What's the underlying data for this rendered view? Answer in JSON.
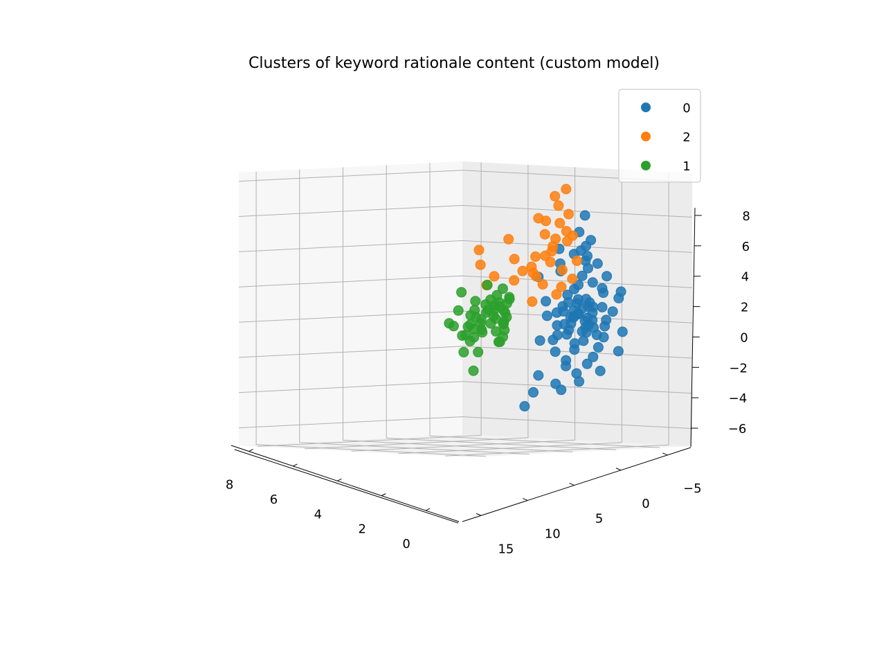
{
  "chart_data": {
    "type": "scatter",
    "projection": "3d",
    "title": "Clusters of keyword rationale content (custom model)",
    "xlabel": "",
    "ylabel": "",
    "zlabel": "",
    "x_axis": {
      "ticks": [
        0,
        2,
        4,
        6,
        8
      ],
      "tick_labels": [
        "0",
        "2",
        "4",
        "6",
        "8"
      ],
      "range": [
        -1.5,
        8.8
      ]
    },
    "y_axis": {
      "ticks": [
        15,
        10,
        5,
        0,
        -5
      ],
      "tick_labels": [
        "15",
        "10",
        "5",
        "0",
        "−5"
      ],
      "range": [
        -7.5,
        17
      ]
    },
    "z_axis": {
      "ticks": [
        -6,
        -4,
        -2,
        0,
        2,
        4,
        6,
        8
      ],
      "tick_labels": [
        "−6",
        "−4",
        "−2",
        "0",
        "2",
        "4",
        "6",
        "8"
      ],
      "range": [
        -7,
        8.5
      ]
    },
    "grid": true,
    "legend": {
      "placement": "top-right",
      "entries": [
        "0",
        "2",
        "1"
      ]
    },
    "series": [
      {
        "name": "0",
        "color": "#1f77b4",
        "points": [
          [
            0.3,
            -0.5,
            0.2
          ],
          [
            0.1,
            0.5,
            0.7
          ],
          [
            0.6,
            -1.0,
            -0.3
          ],
          [
            -0.2,
            0.8,
            1.2
          ],
          [
            0.4,
            -0.3,
            -1.1
          ],
          [
            0.0,
            1.2,
            0.4
          ],
          [
            0.7,
            -1.5,
            0.9
          ],
          [
            0.2,
            0.3,
            -0.6
          ],
          [
            -0.3,
            -0.8,
            1.6
          ],
          [
            0.5,
            1.5,
            -0.2
          ],
          [
            0.8,
            -0.2,
            0.3
          ],
          [
            -0.1,
            -1.3,
            -0.9
          ],
          [
            0.3,
            0.9,
            1.8
          ],
          [
            0.1,
            -0.6,
            2.2
          ],
          [
            0.6,
            0.2,
            -1.6
          ],
          [
            0.0,
            -1.8,
            0.1
          ],
          [
            0.4,
            1.9,
            0.8
          ],
          [
            -0.2,
            0.0,
            -0.4
          ],
          [
            0.9,
            -0.9,
            1.3
          ],
          [
            0.2,
            1.1,
            -1.3
          ],
          [
            0.5,
            -0.4,
            2.6
          ],
          [
            -0.4,
            0.6,
            0.0
          ],
          [
            0.3,
            -1.1,
            -2.0
          ],
          [
            0.7,
            0.7,
            1.5
          ],
          [
            0.1,
            -0.1,
            3.0
          ],
          [
            0.2,
            2.3,
            0.5
          ],
          [
            0.6,
            -2.2,
            -0.7
          ],
          [
            -0.1,
            1.4,
            2.0
          ],
          [
            0.4,
            -0.7,
            -2.4
          ],
          [
            0.0,
            0.4,
            3.4
          ],
          [
            0.8,
            0.1,
            -0.1
          ],
          [
            0.3,
            1.7,
            -0.8
          ],
          [
            0.1,
            -1.6,
            1.9
          ],
          [
            0.5,
            0.5,
            0.6
          ],
          [
            -0.2,
            -0.5,
            -1.5
          ],
          [
            0.2,
            0.0,
            0.0
          ],
          [
            0.4,
            0.2,
            0.4
          ],
          [
            0.1,
            -0.2,
            -0.2
          ],
          [
            0.3,
            0.6,
            1.0
          ],
          [
            0.0,
            -0.4,
            0.8
          ],
          [
            0.6,
            0.8,
            -0.5
          ],
          [
            0.2,
            -0.8,
            0.5
          ],
          [
            -0.3,
            1.0,
            -0.7
          ],
          [
            0.5,
            -1.2,
            1.1
          ],
          [
            0.3,
            1.3,
            0.2
          ],
          [
            0.1,
            2.0,
            1.0
          ],
          [
            0.4,
            2.5,
            -0.3
          ],
          [
            0.2,
            3.0,
            0.4
          ],
          [
            0.0,
            -2.5,
            0.6
          ],
          [
            0.5,
            -2.8,
            -0.2
          ],
          [
            0.3,
            0.2,
            4.0
          ],
          [
            0.1,
            -0.4,
            4.6
          ],
          [
            0.4,
            0.7,
            3.8
          ],
          [
            -0.1,
            1.3,
            5.0
          ],
          [
            0.2,
            0.0,
            6.0
          ],
          [
            0.5,
            -0.8,
            4.3
          ],
          [
            1.0,
            -3.2,
            3.4
          ],
          [
            0.3,
            1.8,
            -2.6
          ],
          [
            0.2,
            0.9,
            -3.0
          ],
          [
            0.6,
            -0.3,
            -3.4
          ],
          [
            0.1,
            -1.4,
            -2.8
          ],
          [
            0.4,
            2.7,
            -1.8
          ],
          [
            0.0,
            3.4,
            -0.9
          ],
          [
            0.7,
            -3.0,
            0.9
          ],
          [
            0.3,
            3.8,
            0.2
          ],
          [
            0.2,
            -3.6,
            1.4
          ],
          [
            0.9,
            0.4,
            -2.2
          ],
          [
            0.5,
            1.9,
            2.8
          ],
          [
            0.1,
            -2.1,
            2.6
          ],
          [
            0.3,
            2.4,
            3.2
          ],
          [
            1.6,
            -0.5,
            4.2
          ],
          [
            2.0,
            0.8,
            2.6
          ],
          [
            1.2,
            -1.1,
            0.3
          ],
          [
            1.5,
            0.4,
            -1.0
          ],
          [
            -0.6,
            1.6,
            3.6
          ],
          [
            0.2,
            5.5,
            -4.2
          ],
          [
            0.4,
            4.5,
            -3.2
          ],
          [
            0.3,
            6.2,
            -5.0
          ],
          [
            0.0,
            3.0,
            -4.0
          ],
          [
            0.6,
            2.2,
            -3.6
          ],
          [
            0.2,
            -4.0,
            -0.5
          ],
          [
            0.4,
            -4.3,
            1.8
          ],
          [
            0.3,
            -3.8,
            -1.6
          ],
          [
            0.1,
            4.4,
            1.0
          ],
          [
            0.5,
            4.1,
            -1.2
          ]
        ]
      },
      {
        "name": "2",
        "color": "#ff7f0e",
        "points": [
          [
            1.5,
            -1.0,
            7.6
          ],
          [
            1.8,
            -0.5,
            7.2
          ],
          [
            1.2,
            0.5,
            6.6
          ],
          [
            1.6,
            -1.5,
            6.2
          ],
          [
            2.0,
            0.0,
            5.8
          ],
          [
            1.4,
            -0.8,
            5.2
          ],
          [
            1.7,
            0.8,
            5.0
          ],
          [
            1.1,
            -0.2,
            4.6
          ],
          [
            2.2,
            -1.2,
            4.4
          ],
          [
            1.3,
            1.0,
            4.0
          ],
          [
            1.9,
            0.3,
            3.8
          ],
          [
            1.0,
            -1.0,
            3.5
          ],
          [
            2.4,
            0.6,
            3.2
          ],
          [
            1.5,
            -0.6,
            3.0
          ],
          [
            1.8,
            1.5,
            2.6
          ],
          [
            4.0,
            2.5,
            4.2
          ],
          [
            3.5,
            3.5,
            3.3
          ],
          [
            3.0,
            4.0,
            2.1
          ],
          [
            2.6,
            2.0,
            2.4
          ],
          [
            2.8,
            -0.5,
            2.9
          ],
          [
            1.2,
            0.2,
            2.0
          ],
          [
            1.6,
            -0.2,
            1.6
          ],
          [
            2.2,
            1.0,
            1.2
          ],
          [
            1.4,
            0.9,
            3.4
          ],
          [
            1.9,
            -0.8,
            4.8
          ],
          [
            3.2,
            1.2,
            4.8
          ],
          [
            2.6,
            -0.6,
            6.0
          ],
          [
            1.1,
            0.6,
            5.6
          ],
          [
            2.9,
            0.4,
            3.0
          ],
          [
            1.7,
            1.8,
            3.7
          ],
          [
            0.9,
            -0.3,
            4.9
          ],
          [
            2.1,
            0.1,
            2.2
          ],
          [
            3.6,
            1.8,
            2.7
          ],
          [
            1.3,
            -1.2,
            2.5
          ],
          [
            2.5,
            2.2,
            3.6
          ]
        ]
      },
      {
        "name": "1",
        "color": "#2ca02c",
        "points": [
          [
            8.5,
            -7.0,
            0.5
          ],
          [
            7.0,
            -3.0,
            -0.3
          ],
          [
            7.2,
            -2.2,
            0.2
          ],
          [
            6.5,
            -1.5,
            -0.4
          ],
          [
            6.8,
            -0.8,
            0.3
          ],
          [
            6.0,
            -0.5,
            -1.4
          ],
          [
            5.5,
            0.2,
            0.0
          ],
          [
            5.0,
            0.5,
            0.5
          ],
          [
            5.6,
            1.0,
            0.9
          ],
          [
            4.5,
            1.0,
            -0.4
          ],
          [
            4.8,
            1.6,
            -0.9
          ],
          [
            4.2,
            1.8,
            0.3
          ],
          [
            3.8,
            2.0,
            0.8
          ],
          [
            3.5,
            2.4,
            0.0
          ],
          [
            3.9,
            1.5,
            1.4
          ],
          [
            3.2,
            2.8,
            0.4
          ],
          [
            3.0,
            3.0,
            -0.5
          ],
          [
            2.8,
            3.5,
            0.2
          ],
          [
            2.5,
            3.8,
            1.1
          ],
          [
            2.2,
            4.0,
            0.0
          ],
          [
            2.0,
            4.5,
            0.6
          ],
          [
            1.8,
            5.0,
            -0.2
          ],
          [
            1.5,
            5.5,
            0.4
          ],
          [
            1.2,
            6.0,
            0.9
          ],
          [
            1.0,
            6.5,
            0.1
          ],
          [
            6.2,
            -2.0,
            -2.4
          ],
          [
            5.2,
            1.6,
            1.9
          ],
          [
            4.0,
            2.6,
            -1.6
          ],
          [
            3.3,
            2.2,
            1.6
          ],
          [
            2.6,
            3.2,
            1.9
          ],
          [
            5.9,
            -1.0,
            0.7
          ],
          [
            4.6,
            0.4,
            1.2
          ],
          [
            3.6,
            1.2,
            -1.0
          ],
          [
            2.9,
            2.5,
            -0.8
          ],
          [
            2.3,
            3.2,
            1.4
          ],
          [
            1.6,
            4.8,
            1.2
          ],
          [
            1.4,
            5.8,
            -0.6
          ],
          [
            2.1,
            4.8,
            -1.2
          ],
          [
            4.4,
            1.4,
            0.1
          ],
          [
            3.1,
            2.9,
            1.0
          ],
          [
            6.4,
            -2.5,
            0.0
          ],
          [
            5.4,
            -0.2,
            -0.6
          ],
          [
            4.9,
            0.8,
            1.4
          ],
          [
            3.7,
            2.3,
            2.2
          ],
          [
            2.7,
            3.9,
            0.7
          ],
          [
            1.9,
            5.2,
            0.8
          ],
          [
            1.1,
            6.6,
            -0.3
          ],
          [
            5.8,
            -1.2,
            1.0
          ],
          [
            4.1,
            2.0,
            -0.3
          ],
          [
            3.4,
            3.1,
            0.6
          ]
        ]
      }
    ]
  }
}
